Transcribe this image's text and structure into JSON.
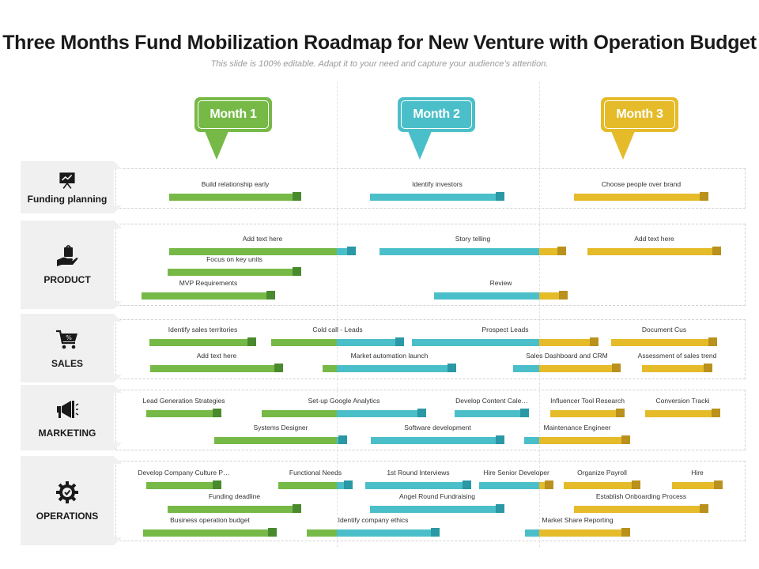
{
  "title": "Three Months Fund Mobilization Roadmap for New Venture with Operation Budget",
  "subtitle": "This slide is 100% editable. Adapt it to your need and capture your audience’s attention.",
  "colors": {
    "green": "#76b947",
    "green_dark": "#4a8a2e",
    "teal": "#4bbfc9",
    "teal_dark": "#2a98a5",
    "gold": "#e5bb2a",
    "gold_dark": "#b9911c"
  },
  "months": [
    {
      "label": "Month 1",
      "color": "#76b947"
    },
    {
      "label": "Month 2",
      "color": "#4bbfc9"
    },
    {
      "label": "Month 3",
      "color": "#e5bb2a"
    }
  ],
  "categories": [
    {
      "label": "Funding planning",
      "icon": "presentation-chart-icon"
    },
    {
      "label": "PRODUCT",
      "icon": "hand-holding-bag-icon"
    },
    {
      "label": "SALES",
      "icon": "shopping-cart-icon"
    },
    {
      "label": "MARKETING",
      "icon": "megaphone-icon"
    },
    {
      "label": "OPERATIONS",
      "icon": "gear-check-icon"
    }
  ],
  "tasks": [
    {
      "label": "Build relationship early",
      "cat": 0,
      "row": 0,
      "start": 214,
      "end": 381,
      "color": "green"
    },
    {
      "label": "Identify investors",
      "cat": 0,
      "row": 0,
      "start": 468,
      "end": 638,
      "color": "teal"
    },
    {
      "label": "Choose people over brand",
      "cat": 0,
      "row": 0,
      "start": 726,
      "end": 896,
      "color": "gold"
    },
    {
      "label": "Add text here",
      "cat": 1,
      "row": 0,
      "start": 214,
      "end": 450,
      "color": "green"
    },
    {
      "label": "Story telling",
      "cat": 1,
      "row": 0,
      "start": 480,
      "end": 716,
      "color": "teal"
    },
    {
      "label": "Add text here",
      "cat": 1,
      "row": 0,
      "start": 743,
      "end": 912,
      "color": "gold"
    },
    {
      "label": "Focus on key units",
      "cat": 1,
      "row": 1,
      "start": 212,
      "end": 381,
      "color": "green"
    },
    {
      "label": "MVP Requirements",
      "cat": 1,
      "row": 2,
      "start": 179,
      "end": 348,
      "color": "green"
    },
    {
      "label": "Review",
      "cat": 1,
      "row": 2,
      "start": 549,
      "end": 718,
      "color": "teal"
    },
    {
      "label": "Identify sales territories",
      "cat": 2,
      "row": 0,
      "start": 189,
      "end": 324,
      "color": "green"
    },
    {
      "label": "Cold call - Leads",
      "cat": 2,
      "row": 0,
      "start": 343,
      "end": 511,
      "color": "green"
    },
    {
      "label": "Prospect Leads",
      "cat": 2,
      "row": 0,
      "start": 521,
      "end": 757,
      "color": "teal"
    },
    {
      "label": "Document Cus",
      "cat": 2,
      "row": 0,
      "start": 773,
      "end": 907,
      "color": "gold"
    },
    {
      "label": "Add text here",
      "cat": 2,
      "row": 1,
      "start": 190,
      "end": 358,
      "color": "green"
    },
    {
      "label": "Market automation launch",
      "cat": 2,
      "row": 1,
      "start": 408,
      "end": 577,
      "color": "green"
    },
    {
      "label": "Sales Dashboard and CRM",
      "cat": 2,
      "row": 1,
      "start": 649,
      "end": 785,
      "color": "teal"
    },
    {
      "label": "Assessment of sales trend",
      "cat": 2,
      "row": 1,
      "start": 812,
      "end": 901,
      "color": "gold"
    },
    {
      "label": "Lead Generation Strategies",
      "cat": 3,
      "row": 0,
      "start": 185,
      "end": 280,
      "color": "green"
    },
    {
      "label": "Set-up Google Analytics",
      "cat": 3,
      "row": 0,
      "start": 331,
      "end": 539,
      "color": "green"
    },
    {
      "label": "Develop Content Cale…",
      "cat": 3,
      "row": 0,
      "start": 575,
      "end": 669,
      "color": "teal"
    },
    {
      "label": "Influencer Tool Research",
      "cat": 3,
      "row": 0,
      "start": 696,
      "end": 790,
      "color": "gold"
    },
    {
      "label": "Conversion Tracki",
      "cat": 3,
      "row": 0,
      "start": 816,
      "end": 911,
      "color": "gold"
    },
    {
      "label": "Systems Designer",
      "cat": 3,
      "row": 1,
      "start": 271,
      "end": 439,
      "color": "green"
    },
    {
      "label": "Software development",
      "cat": 3,
      "row": 1,
      "start": 469,
      "end": 638,
      "color": "teal"
    },
    {
      "label": "Maintenance Engineer",
      "cat": 3,
      "row": 1,
      "start": 663,
      "end": 797,
      "color": "teal"
    },
    {
      "label": "Develop Company Culture P…",
      "cat": 4,
      "row": 0,
      "start": 185,
      "end": 280,
      "color": "green"
    },
    {
      "label": "Functional Needs",
      "cat": 4,
      "row": 0,
      "start": 352,
      "end": 446,
      "color": "green"
    },
    {
      "label": "1st Round Interviews",
      "cat": 4,
      "row": 0,
      "start": 462,
      "end": 596,
      "color": "teal"
    },
    {
      "label": "Hire Senior Developer",
      "cat": 4,
      "row": 0,
      "start": 606,
      "end": 700,
      "color": "teal"
    },
    {
      "label": "Organize Payroll",
      "cat": 4,
      "row": 0,
      "start": 713,
      "end": 810,
      "color": "gold"
    },
    {
      "label": "Hire",
      "cat": 4,
      "row": 0,
      "start": 850,
      "end": 914,
      "color": "gold"
    },
    {
      "label": "Funding deadline",
      "cat": 4,
      "row": 1,
      "start": 212,
      "end": 381,
      "color": "green"
    },
    {
      "label": "Angel Round Fundraising",
      "cat": 4,
      "row": 1,
      "start": 468,
      "end": 638,
      "color": "teal"
    },
    {
      "label": "Establish Onboarding Process",
      "cat": 4,
      "row": 1,
      "start": 726,
      "end": 896,
      "color": "gold"
    },
    {
      "label": "Business operation budget",
      "cat": 4,
      "row": 2,
      "start": 181,
      "end": 350,
      "color": "green"
    },
    {
      "label": "Identify company ethics",
      "cat": 4,
      "row": 2,
      "start": 388,
      "end": 556,
      "color": "green"
    },
    {
      "label": "Market Share Reporting",
      "cat": 4,
      "row": 2,
      "start": 664,
      "end": 797,
      "color": "teal"
    }
  ]
}
